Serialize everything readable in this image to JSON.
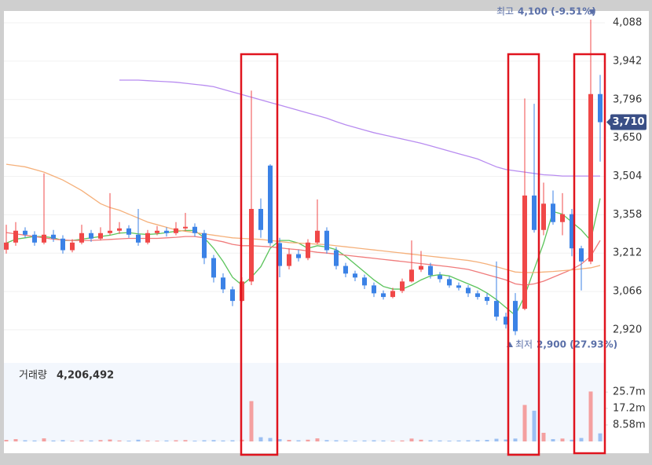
{
  "chart_data": {
    "type": "candlestick",
    "up_color": "#f04848",
    "down_color": "#3b82e6",
    "open": [
      3225,
      3252,
      3297,
      3282,
      3252,
      3282,
      3267,
      3223,
      3252,
      3288,
      3267,
      3288,
      3297,
      3306,
      3282,
      3252,
      3288,
      3297,
      3288,
      3306,
      3312,
      3288,
      3193,
      3119,
      3074,
      3030,
      3104,
      3380,
      3545,
      3250,
      3163,
      3208,
      3193,
      3252,
      3297,
      3223,
      3163,
      3134,
      3119,
      3089,
      3059,
      3045,
      3068,
      3104,
      3149,
      3163,
      3128,
      3113,
      3089,
      3080,
      3059,
      3045,
      3030,
      2970,
      3030,
      3000,
      3431,
      3300,
      3400,
      3330,
      3360,
      3230,
      3180,
      3817
    ],
    "high": [
      3320,
      3330,
      3310,
      3295,
      3515,
      3300,
      3280,
      3265,
      3320,
      3300,
      3310,
      3440,
      3330,
      3318,
      3380,
      3300,
      3315,
      3310,
      3330,
      3365,
      3325,
      3300,
      3205,
      3135,
      3085,
      3120,
      3830,
      3420,
      3550,
      3270,
      3230,
      3225,
      3265,
      3416,
      3310,
      3235,
      3175,
      3145,
      3130,
      3100,
      3070,
      3080,
      3115,
      3260,
      3220,
      3175,
      3140,
      3125,
      3100,
      3090,
      3070,
      3060,
      3180,
      2985,
      3060,
      3800,
      3780,
      3480,
      3450,
      3440,
      3380,
      3240,
      4100,
      3890
    ],
    "low": [
      3210,
      3240,
      3270,
      3240,
      3245,
      3255,
      3210,
      3215,
      3245,
      3255,
      3260,
      3280,
      3285,
      3270,
      3240,
      3245,
      3280,
      3275,
      3280,
      3295,
      3275,
      3170,
      3100,
      3060,
      3010,
      3025,
      3090,
      3270,
      3240,
      3120,
      3150,
      3180,
      3185,
      3245,
      3210,
      3150,
      3120,
      3105,
      3075,
      3045,
      3035,
      3040,
      3060,
      3100,
      3140,
      3115,
      3100,
      3080,
      3070,
      3045,
      3035,
      3015,
      2955,
      2925,
      2900,
      2995,
      3290,
      3280,
      3320,
      3280,
      3200,
      3070,
      3170,
      3560
    ],
    "close": [
      3252,
      3297,
      3282,
      3252,
      3282,
      3267,
      3223,
      3252,
      3288,
      3267,
      3288,
      3297,
      3306,
      3282,
      3252,
      3288,
      3297,
      3288,
      3306,
      3312,
      3288,
      3193,
      3119,
      3074,
      3030,
      3104,
      3380,
      3300,
      3250,
      3163,
      3208,
      3193,
      3252,
      3297,
      3223,
      3163,
      3134,
      3119,
      3089,
      3059,
      3045,
      3068,
      3104,
      3149,
      3163,
      3128,
      3113,
      3089,
      3080,
      3059,
      3045,
      3030,
      2970,
      2940,
      2915,
      3431,
      3300,
      3400,
      3330,
      3360,
      3230,
      3180,
      3817,
      3710
    ],
    "series": [
      {
        "color": "#5cc45c",
        "values": [
          3250,
          3265,
          3270,
          3275,
          3275,
          3270,
          3260,
          3260,
          3265,
          3270,
          3275,
          3280,
          3288,
          3290,
          3285,
          3283,
          3285,
          3290,
          3295,
          3298,
          3298,
          3270,
          3230,
          3180,
          3120,
          3090,
          3120,
          3160,
          3230,
          3260,
          3260,
          3250,
          3230,
          3240,
          3235,
          3225,
          3200,
          3170,
          3140,
          3110,
          3085,
          3075,
          3075,
          3090,
          3110,
          3125,
          3130,
          3125,
          3110,
          3095,
          3080,
          3060,
          3035,
          3005,
          2975,
          3050,
          3150,
          3250,
          3370,
          3360,
          3330,
          3300,
          3260,
          3420
        ]
      },
      {
        "color": "#f07b7b",
        "values": [
          3290,
          3285,
          3280,
          3275,
          3270,
          3265,
          3262,
          3260,
          3260,
          3260,
          3262,
          3264,
          3266,
          3268,
          3268,
          3268,
          3268,
          3270,
          3272,
          3275,
          3275,
          3270,
          3262,
          3255,
          3245,
          3240,
          3240,
          3238,
          3236,
          3232,
          3228,
          3225,
          3220,
          3215,
          3212,
          3208,
          3204,
          3200,
          3196,
          3192,
          3188,
          3184,
          3180,
          3176,
          3172,
          3168,
          3164,
          3160,
          3155,
          3150,
          3140,
          3130,
          3120,
          3110,
          3095,
          3090,
          3095,
          3105,
          3120,
          3135,
          3150,
          3170,
          3200,
          3260
        ]
      },
      {
        "color": "#f5b07a",
        "values": [
          3550,
          3545,
          3540,
          3530,
          3520,
          3505,
          3490,
          3470,
          3450,
          3425,
          3400,
          3385,
          3375,
          3360,
          3345,
          3330,
          3320,
          3310,
          3300,
          3295,
          3290,
          3285,
          3280,
          3275,
          3270,
          3268,
          3266,
          3264,
          3260,
          3256,
          3252,
          3250,
          3248,
          3246,
          3244,
          3240,
          3236,
          3232,
          3228,
          3224,
          3220,
          3216,
          3212,
          3208,
          3204,
          3200,
          3196,
          3192,
          3188,
          3184,
          3178,
          3170,
          3160,
          3150,
          3140,
          3138,
          3138,
          3140,
          3142,
          3145,
          3148,
          3152,
          3156,
          3165
        ]
      },
      {
        "color": "#b88cf0",
        "values": [
          null,
          null,
          null,
          null,
          null,
          null,
          null,
          null,
          null,
          null,
          null,
          null,
          3870,
          3870,
          3870,
          3868,
          3866,
          3864,
          3862,
          3858,
          3854,
          3850,
          3845,
          3835,
          3825,
          3815,
          3805,
          3795,
          3785,
          3775,
          3765,
          3755,
          3745,
          3735,
          3725,
          3712,
          3700,
          3690,
          3680,
          3670,
          3662,
          3654,
          3646,
          3638,
          3630,
          3620,
          3610,
          3600,
          3590,
          3580,
          3570,
          3555,
          3540,
          3530,
          3525,
          3520,
          3515,
          3510,
          3508,
          3505,
          3505,
          3505,
          3505,
          3505
        ]
      }
    ],
    "ylim": [
      2860,
      4130
    ],
    "yticks": [
      {
        "value": 2920,
        "label": "2,920"
      },
      {
        "value": 3066,
        "label": "3,066"
      },
      {
        "value": 3212,
        "label": "3,212"
      },
      {
        "value": 3358,
        "label": "3,358"
      },
      {
        "value": 3504,
        "label": "3,504"
      },
      {
        "value": 3650,
        "label": "3,650"
      },
      {
        "value": 3796,
        "label": "3,796"
      },
      {
        "value": 3942,
        "label": "3,942"
      },
      {
        "value": 4088,
        "label": "4,088"
      }
    ],
    "grid": true,
    "last_price_label": "3,710",
    "max_marker": {
      "label": "최고",
      "value_label": "4,100 (-9.51%)"
    },
    "min_marker": {
      "label": "최저",
      "value_label": "2,900 (27.93%)"
    },
    "volume": {
      "title": "거래량",
      "value_label": "4,206,492",
      "values": [
        800000,
        1200000,
        600000,
        500000,
        1600000,
        500000,
        700000,
        400000,
        600000,
        500000,
        700000,
        1000000,
        500000,
        400000,
        900000,
        500000,
        400000,
        500000,
        600000,
        700000,
        400000,
        600000,
        700000,
        500000,
        600000,
        900000,
        21000000,
        2200000,
        1800000,
        1200000,
        800000,
        600000,
        900000,
        1600000,
        700000,
        600000,
        500000,
        400000,
        500000,
        600000,
        500000,
        400000,
        500000,
        1500000,
        900000,
        600000,
        500000,
        400000,
        500000,
        600000,
        700000,
        800000,
        1400000,
        1000000,
        1500000,
        19000000,
        16000000,
        4500000,
        1200000,
        1500000,
        900000,
        1800000,
        26000000,
        4206492
      ],
      "ylim": [
        0,
        40900000
      ],
      "yticks": [
        {
          "value": 8580000,
          "label": "8.58m"
        },
        {
          "value": 17200000,
          "label": "17.2m"
        },
        {
          "value": 25700000,
          "label": "25.7m"
        }
      ]
    }
  }
}
